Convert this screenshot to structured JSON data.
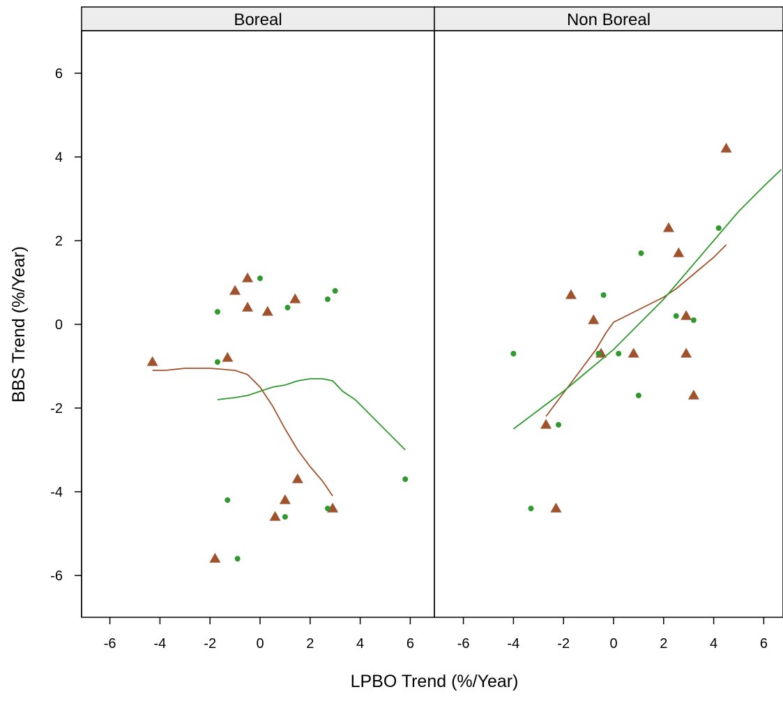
{
  "chart_data": {
    "type": "scatter",
    "xlabel": "LPBO Trend (%/Year)",
    "ylabel": "BBS Trend (%/Year)",
    "xlim": [
      -7,
      7
    ],
    "ylim": [
      -7,
      7
    ],
    "xticks": [
      -6,
      -4,
      -2,
      0,
      2,
      4,
      6
    ],
    "yticks": [
      -6,
      -4,
      -2,
      0,
      2,
      4,
      6
    ],
    "xtick_labels": [
      "-6",
      "-4",
      "-2",
      "0",
      "2",
      "4",
      "6"
    ],
    "ytick_labels": [
      "-6",
      "-4",
      "-2",
      "0",
      "2",
      "4",
      "6"
    ],
    "grid": false,
    "colors": {
      "triangle": "#A0522D",
      "circle": "#2E9A2E",
      "strip_bg": "#EDEDED"
    },
    "panels": [
      {
        "strip": "Boreal",
        "series": [
          {
            "marker": "triangle",
            "points": [
              [
                -4.3,
                -0.9
              ],
              [
                -1.3,
                -0.8
              ],
              [
                -1.0,
                0.8
              ],
              [
                -0.5,
                1.1
              ],
              [
                -0.5,
                0.4
              ],
              [
                0.3,
                0.3
              ],
              [
                1.4,
                0.6
              ],
              [
                1.5,
                -3.7
              ],
              [
                1.0,
                -4.2
              ],
              [
                0.6,
                -4.6
              ],
              [
                2.9,
                -4.4
              ],
              [
                -1.8,
                -5.6
              ]
            ],
            "smooth": [
              [
                -4.3,
                -1.1
              ],
              [
                -3.8,
                -1.1
              ],
              [
                -3.0,
                -1.05
              ],
              [
                -2.0,
                -1.05
              ],
              [
                -1.0,
                -1.1
              ],
              [
                -0.5,
                -1.2
              ],
              [
                0.0,
                -1.5
              ],
              [
                0.5,
                -1.95
              ],
              [
                1.0,
                -2.5
              ],
              [
                1.5,
                -3.0
              ],
              [
                2.0,
                -3.4
              ],
              [
                2.5,
                -3.75
              ],
              [
                2.9,
                -4.1
              ]
            ]
          },
          {
            "marker": "circle",
            "points": [
              [
                -1.7,
                0.3
              ],
              [
                -1.7,
                -0.9
              ],
              [
                0.0,
                1.1
              ],
              [
                1.1,
                0.4
              ],
              [
                2.7,
                0.6
              ],
              [
                3.0,
                0.8
              ],
              [
                -1.3,
                -4.2
              ],
              [
                1.0,
                -4.6
              ],
              [
                2.7,
                -4.4
              ],
              [
                -0.9,
                -5.6
              ],
              [
                5.8,
                -3.7
              ]
            ],
            "smooth": [
              [
                -1.7,
                -1.8
              ],
              [
                -1.0,
                -1.75
              ],
              [
                -0.5,
                -1.7
              ],
              [
                0.0,
                -1.6
              ],
              [
                0.5,
                -1.5
              ],
              [
                1.0,
                -1.45
              ],
              [
                1.5,
                -1.35
              ],
              [
                2.0,
                -1.3
              ],
              [
                2.5,
                -1.3
              ],
              [
                2.9,
                -1.35
              ],
              [
                3.3,
                -1.6
              ],
              [
                3.8,
                -1.8
              ],
              [
                4.3,
                -2.1
              ],
              [
                4.8,
                -2.4
              ],
              [
                5.3,
                -2.7
              ],
              [
                5.8,
                -3.0
              ]
            ]
          }
        ]
      },
      {
        "strip": "Non Boreal",
        "series": [
          {
            "marker": "triangle",
            "points": [
              [
                -2.7,
                -2.4
              ],
              [
                -2.3,
                -4.4
              ],
              [
                -1.7,
                0.7
              ],
              [
                -0.8,
                0.1
              ],
              [
                -0.5,
                -0.7
              ],
              [
                0.8,
                -0.7
              ],
              [
                2.2,
                2.3
              ],
              [
                2.6,
                1.7
              ],
              [
                2.9,
                0.2
              ],
              [
                2.9,
                -0.7
              ],
              [
                3.2,
                -1.7
              ],
              [
                4.5,
                4.2
              ]
            ],
            "smooth": [
              [
                -2.7,
                -2.2
              ],
              [
                -2.2,
                -1.8
              ],
              [
                -1.7,
                -1.4
              ],
              [
                -1.2,
                -1.0
              ],
              [
                -0.7,
                -0.6
              ],
              [
                -0.3,
                -0.2
              ],
              [
                0.0,
                0.05
              ],
              [
                0.5,
                0.2
              ],
              [
                1.0,
                0.35
              ],
              [
                1.5,
                0.5
              ],
              [
                2.0,
                0.65
              ],
              [
                2.5,
                0.85
              ],
              [
                3.0,
                1.1
              ],
              [
                3.5,
                1.35
              ],
              [
                4.0,
                1.6
              ],
              [
                4.5,
                1.9
              ]
            ]
          },
          {
            "marker": "circle",
            "points": [
              [
                -4.0,
                -0.7
              ],
              [
                -3.3,
                -4.4
              ],
              [
                -2.2,
                -2.4
              ],
              [
                -0.6,
                -0.7
              ],
              [
                -0.4,
                0.7
              ],
              [
                0.2,
                -0.7
              ],
              [
                1.0,
                -1.7
              ],
              [
                1.1,
                1.7
              ],
              [
                2.5,
                0.2
              ],
              [
                3.2,
                0.1
              ],
              [
                4.2,
                2.3
              ]
            ],
            "smooth": [
              [
                -4.0,
                -2.5
              ],
              [
                -3.0,
                -2.05
              ],
              [
                -2.0,
                -1.6
              ],
              [
                -1.0,
                -1.1
              ],
              [
                0.0,
                -0.6
              ],
              [
                1.0,
                0.0
              ],
              [
                2.0,
                0.6
              ],
              [
                3.0,
                1.3
              ],
              [
                4.0,
                2.0
              ],
              [
                5.0,
                2.7
              ],
              [
                6.0,
                3.3
              ],
              [
                6.7,
                3.7
              ]
            ]
          }
        ]
      }
    ]
  }
}
